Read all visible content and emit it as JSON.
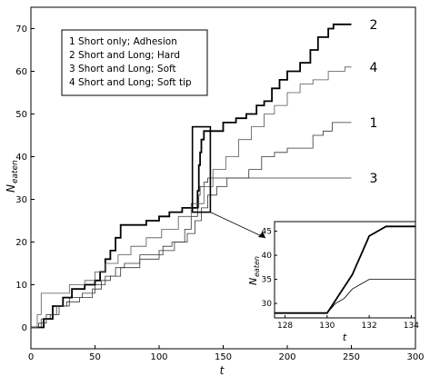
{
  "chart_data": {
    "type": "line",
    "xlabel": "t",
    "ylabel_main": "N",
    "ylabel_sub": "eaten",
    "xlim": [
      0,
      300
    ],
    "ylim": [
      -5,
      75
    ],
    "x_ticks": [
      "0",
      "50",
      "100",
      "150",
      "200",
      "250",
      "300"
    ],
    "y_ticks": [
      "0",
      "10",
      "20",
      "30",
      "40",
      "50",
      "60",
      "70"
    ],
    "grid": false,
    "legend_position": "top-left",
    "legend": [
      "1 Short only; Adhesion",
      "2 Short and Long; Hard",
      "3 Short and Long; Soft",
      "4 Short and Long; Soft tip"
    ],
    "series": [
      {
        "name": "1",
        "end_label": "1",
        "points": [
          [
            0,
            0
          ],
          [
            8,
            0
          ],
          [
            8,
            2
          ],
          [
            15,
            2
          ],
          [
            15,
            3
          ],
          [
            22,
            3
          ],
          [
            22,
            5
          ],
          [
            30,
            5
          ],
          [
            30,
            7
          ],
          [
            40,
            7
          ],
          [
            40,
            8
          ],
          [
            50,
            8
          ],
          [
            50,
            10
          ],
          [
            58,
            10
          ],
          [
            58,
            12
          ],
          [
            66,
            12
          ],
          [
            66,
            14
          ],
          [
            73,
            14
          ],
          [
            73,
            15
          ],
          [
            85,
            15
          ],
          [
            85,
            17
          ],
          [
            103,
            17
          ],
          [
            103,
            19
          ],
          [
            110,
            19
          ],
          [
            110,
            20
          ],
          [
            122,
            20
          ],
          [
            122,
            22
          ],
          [
            128,
            22
          ],
          [
            128,
            25
          ],
          [
            133,
            25
          ],
          [
            133,
            28
          ],
          [
            138,
            28
          ],
          [
            138,
            31
          ],
          [
            145,
            31
          ],
          [
            145,
            33
          ],
          [
            153,
            33
          ],
          [
            153,
            35
          ],
          [
            170,
            35
          ],
          [
            170,
            37
          ],
          [
            180,
            37
          ],
          [
            180,
            40
          ],
          [
            190,
            40
          ],
          [
            190,
            41
          ],
          [
            200,
            41
          ],
          [
            200,
            42
          ],
          [
            220,
            42
          ],
          [
            220,
            45
          ],
          [
            228,
            45
          ],
          [
            228,
            46
          ],
          [
            235,
            46
          ],
          [
            235,
            48
          ],
          [
            250,
            48
          ]
        ]
      },
      {
        "name": "2",
        "end_label": "2",
        "points": [
          [
            0,
            0
          ],
          [
            10,
            0
          ],
          [
            10,
            2
          ],
          [
            17,
            2
          ],
          [
            17,
            5
          ],
          [
            25,
            5
          ],
          [
            25,
            7
          ],
          [
            32,
            7
          ],
          [
            32,
            9
          ],
          [
            42,
            9
          ],
          [
            42,
            10
          ],
          [
            50,
            10
          ],
          [
            50,
            11
          ],
          [
            54,
            11
          ],
          [
            54,
            13
          ],
          [
            58,
            13
          ],
          [
            58,
            16
          ],
          [
            62,
            16
          ],
          [
            62,
            18
          ],
          [
            66,
            18
          ],
          [
            66,
            21
          ],
          [
            70,
            21
          ],
          [
            70,
            24
          ],
          [
            90,
            24
          ],
          [
            90,
            25
          ],
          [
            100,
            25
          ],
          [
            100,
            26
          ],
          [
            108,
            26
          ],
          [
            108,
            27
          ],
          [
            118,
            27
          ],
          [
            118,
            28
          ],
          [
            130,
            28
          ],
          [
            130,
            32
          ],
          [
            131,
            32
          ],
          [
            131,
            38
          ],
          [
            132,
            38
          ],
          [
            132,
            41
          ],
          [
            133,
            41
          ],
          [
            133,
            44
          ],
          [
            135,
            44
          ],
          [
            135,
            46
          ],
          [
            150,
            46
          ],
          [
            150,
            48
          ],
          [
            160,
            48
          ],
          [
            160,
            49
          ],
          [
            168,
            49
          ],
          [
            168,
            50
          ],
          [
            176,
            50
          ],
          [
            176,
            52
          ],
          [
            182,
            52
          ],
          [
            182,
            53
          ],
          [
            188,
            53
          ],
          [
            188,
            56
          ],
          [
            194,
            56
          ],
          [
            194,
            58
          ],
          [
            200,
            58
          ],
          [
            200,
            60
          ],
          [
            210,
            60
          ],
          [
            210,
            62
          ],
          [
            218,
            62
          ],
          [
            218,
            65
          ],
          [
            224,
            65
          ],
          [
            224,
            68
          ],
          [
            232,
            68
          ],
          [
            232,
            70
          ],
          [
            236,
            70
          ],
          [
            236,
            71
          ],
          [
            250,
            71
          ]
        ]
      },
      {
        "name": "3",
        "end_label": "3",
        "points": [
          [
            0,
            0
          ],
          [
            6,
            0
          ],
          [
            6,
            1
          ],
          [
            12,
            1
          ],
          [
            12,
            3
          ],
          [
            20,
            3
          ],
          [
            20,
            5
          ],
          [
            28,
            5
          ],
          [
            28,
            6
          ],
          [
            38,
            6
          ],
          [
            38,
            7
          ],
          [
            48,
            7
          ],
          [
            48,
            9
          ],
          [
            55,
            9
          ],
          [
            55,
            11
          ],
          [
            62,
            11
          ],
          [
            62,
            12
          ],
          [
            70,
            12
          ],
          [
            70,
            14
          ],
          [
            85,
            14
          ],
          [
            85,
            16
          ],
          [
            100,
            16
          ],
          [
            100,
            18
          ],
          [
            112,
            18
          ],
          [
            112,
            20
          ],
          [
            120,
            20
          ],
          [
            120,
            23
          ],
          [
            125,
            23
          ],
          [
            125,
            26
          ],
          [
            130,
            26
          ],
          [
            130,
            28
          ],
          [
            131,
            28
          ],
          [
            131,
            31
          ],
          [
            132,
            31
          ],
          [
            132,
            33
          ],
          [
            135,
            33
          ],
          [
            135,
            34
          ],
          [
            138,
            34
          ],
          [
            138,
            35
          ],
          [
            250,
            35
          ]
        ]
      },
      {
        "name": "4",
        "end_label": "4",
        "points": [
          [
            0,
            0
          ],
          [
            5,
            0
          ],
          [
            5,
            3
          ],
          [
            8,
            3
          ],
          [
            8,
            8
          ],
          [
            30,
            8
          ],
          [
            30,
            10
          ],
          [
            42,
            10
          ],
          [
            42,
            11
          ],
          [
            50,
            11
          ],
          [
            50,
            13
          ],
          [
            58,
            13
          ],
          [
            58,
            15
          ],
          [
            68,
            15
          ],
          [
            68,
            17
          ],
          [
            78,
            17
          ],
          [
            78,
            19
          ],
          [
            90,
            19
          ],
          [
            90,
            21
          ],
          [
            102,
            21
          ],
          [
            102,
            23
          ],
          [
            115,
            23
          ],
          [
            115,
            26
          ],
          [
            125,
            26
          ],
          [
            125,
            29
          ],
          [
            135,
            29
          ],
          [
            135,
            33
          ],
          [
            142,
            33
          ],
          [
            142,
            37
          ],
          [
            152,
            37
          ],
          [
            152,
            40
          ],
          [
            162,
            40
          ],
          [
            162,
            44
          ],
          [
            172,
            44
          ],
          [
            172,
            47
          ],
          [
            182,
            47
          ],
          [
            182,
            50
          ],
          [
            190,
            50
          ],
          [
            190,
            52
          ],
          [
            200,
            52
          ],
          [
            200,
            55
          ],
          [
            210,
            55
          ],
          [
            210,
            57
          ],
          [
            220,
            57
          ],
          [
            220,
            58
          ],
          [
            232,
            58
          ],
          [
            232,
            60
          ],
          [
            245,
            60
          ],
          [
            245,
            61
          ],
          [
            250,
            61
          ]
        ]
      }
    ],
    "inset": {
      "xlabel": "t",
      "ylabel_main": "N",
      "ylabel_sub": "eaten",
      "xlim": [
        127.5,
        134.2
      ],
      "ylim": [
        27,
        47
      ],
      "x_ticks": [
        "128",
        "130",
        "132",
        "134"
      ],
      "y_ticks": [
        "30",
        "35",
        "40",
        "45"
      ],
      "zoom_box": {
        "x": [
          126,
          140
        ],
        "y": [
          27,
          47
        ]
      },
      "series": [
        {
          "name": "thick",
          "points": [
            [
              127.5,
              28
            ],
            [
              130,
              28
            ],
            [
              130.3,
              30
            ],
            [
              130.6,
              32
            ],
            [
              130.9,
              34
            ],
            [
              131.2,
              36
            ],
            [
              131.4,
              38
            ],
            [
              131.6,
              40
            ],
            [
              131.8,
              42
            ],
            [
              132,
              44
            ],
            [
              132.4,
              45
            ],
            [
              132.8,
              46
            ],
            [
              134.2,
              46
            ]
          ]
        },
        {
          "name": "thin",
          "points": [
            [
              127.5,
              28
            ],
            [
              130,
              28
            ],
            [
              130.4,
              30
            ],
            [
              130.8,
              31
            ],
            [
              131.2,
              33
            ],
            [
              131.6,
              34
            ],
            [
              132,
              35
            ],
            [
              134.2,
              35
            ]
          ]
        }
      ]
    }
  }
}
